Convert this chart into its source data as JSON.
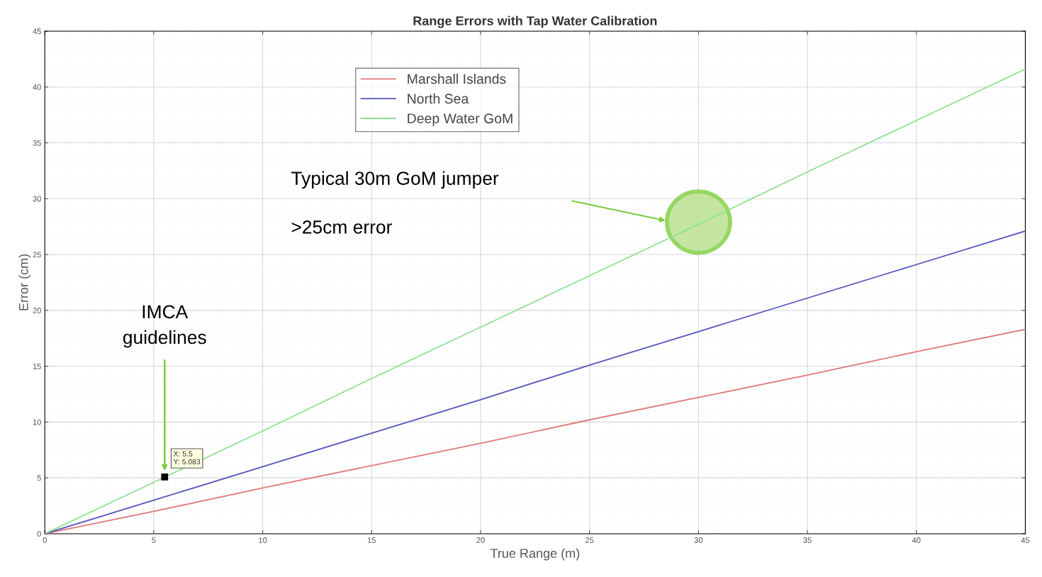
{
  "chart_data": {
    "type": "line",
    "title": "Range Errors with Tap Water Calibration",
    "xlabel": "True Range (m)",
    "ylabel": "Error (cm)",
    "series": [
      {
        "name": "Marshall Islands",
        "color": "#e07a7a",
        "values": [
          0,
          2.0,
          4.1,
          6.1,
          8.1,
          10.2,
          12.2,
          14.2,
          16.3,
          18.3
        ]
      },
      {
        "name": "North Sea",
        "color": "#5555c0",
        "values": [
          0,
          3.0,
          6.0,
          9.0,
          12.0,
          15.1,
          18.1,
          21.1,
          24.1,
          27.1
        ]
      },
      {
        "name": "Deep Water GoM",
        "color": "#90e090",
        "values": [
          0,
          4.6,
          9.2,
          13.9,
          18.5,
          23.1,
          27.7,
          32.4,
          37.0,
          41.6
        ]
      }
    ],
    "x": [
      0,
      5,
      10,
      15,
      20,
      25,
      30,
      35,
      40,
      45
    ],
    "xlim": [
      0,
      45
    ],
    "xticks": [
      0,
      5,
      10,
      15,
      20,
      25,
      30,
      35,
      40,
      45
    ],
    "ylim": [
      0,
      45
    ],
    "yticks": [
      0,
      5,
      10,
      15,
      20,
      25,
      30,
      35,
      40,
      45
    ],
    "grid": true,
    "legend": "top",
    "line_style": "solid",
    "annotations": [
      "Typical 30m GoM jumper",
      ">25cm error",
      "IMCA\nguidelines",
      {
        "text": "X: 5.5\nY: 5.083",
        "x": 5.5,
        "y": 5.083
      }
    ]
  }
}
